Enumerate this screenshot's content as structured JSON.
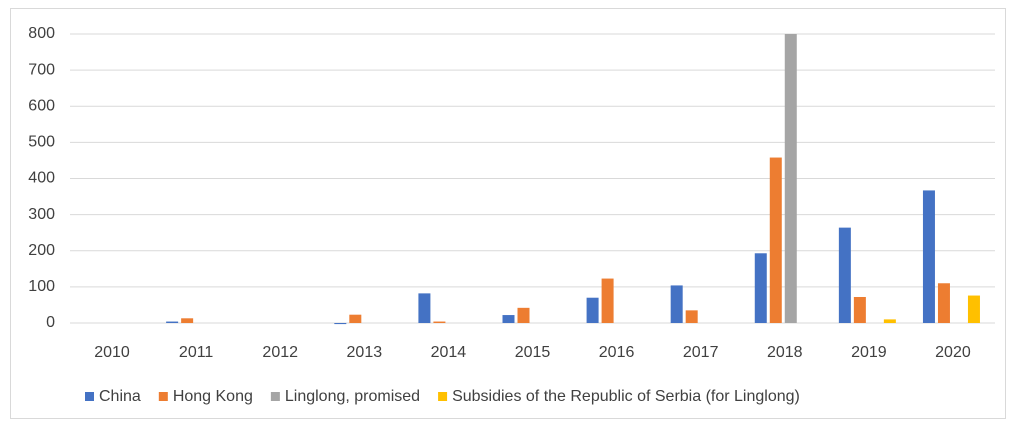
{
  "chart_data": {
    "type": "bar",
    "categories": [
      "2010",
      "2011",
      "2012",
      "2013",
      "2014",
      "2015",
      "2016",
      "2017",
      "2018",
      "2019",
      "2020"
    ],
    "series": [
      {
        "name": "China",
        "color": "#4472c4",
        "values": [
          0,
          4,
          0,
          -3,
          82,
          22,
          70,
          104,
          193,
          264,
          367
        ]
      },
      {
        "name": "Hong Kong",
        "color": "#ed7d31",
        "values": [
          0,
          13,
          0,
          23,
          4,
          42,
          123,
          35,
          458,
          72,
          110
        ]
      },
      {
        "name": "Linglong, promised",
        "color": "#a5a5a5",
        "values": [
          0,
          0,
          0,
          0,
          0,
          0,
          0,
          0,
          800,
          0,
          0
        ]
      },
      {
        "name": "Subsidies of the Republic of Serbia (for Linglong)",
        "color": "#ffc000",
        "values": [
          0,
          0,
          0,
          0,
          0,
          0,
          0,
          0,
          0,
          10,
          76
        ]
      }
    ],
    "ylim": [
      0,
      800
    ],
    "yticks": [
      0,
      100,
      200,
      300,
      400,
      500,
      600,
      700,
      800
    ],
    "grid": true,
    "legend": "bottom"
  }
}
